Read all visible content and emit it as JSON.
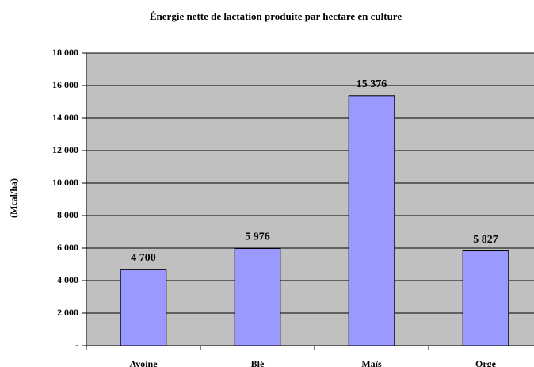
{
  "chart_data": {
    "type": "bar",
    "title": "Énergie nette de lactation produite par hectare en culture",
    "y_label": "(Mcal/ha)",
    "categories": [
      "Avoine",
      "Blé",
      "Maïs",
      "Orge"
    ],
    "values": [
      4700,
      5976,
      15376,
      5827
    ],
    "value_labels": [
      "4 700",
      "5 976",
      "15 376",
      "5 827"
    ],
    "color": "#9999ff",
    "ylim": [
      0,
      18000
    ],
    "yticks": [
      {
        "value": 0,
        "label": "-"
      },
      {
        "value": 2000,
        "label": "2 000"
      },
      {
        "value": 4000,
        "label": "4 000"
      },
      {
        "value": 6000,
        "label": "6 000"
      },
      {
        "value": 8000,
        "label": "8 000"
      },
      {
        "value": 10000,
        "label": "10 000"
      },
      {
        "value": 12000,
        "label": "12 000"
      },
      {
        "value": 14000,
        "label": "14 000"
      },
      {
        "value": 16000,
        "label": "16 000"
      },
      {
        "value": 18000,
        "label": "18 000"
      }
    ],
    "grid": true
  }
}
